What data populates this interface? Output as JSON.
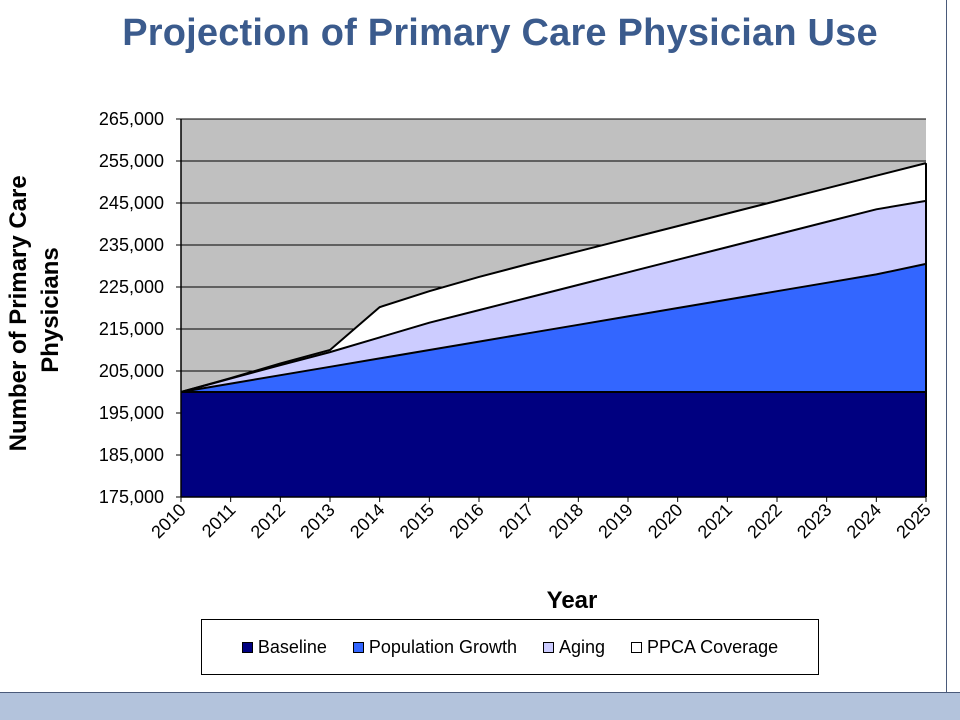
{
  "chart_data": {
    "type": "area",
    "stacked": true,
    "title": "Projection of Primary Care Physician Use",
    "xlabel": "Year",
    "ylabel": "Number of Primary Care Physicians",
    "ylim": [
      175000,
      265000
    ],
    "y_ticks": [
      "175,000",
      "185,000",
      "195,000",
      "205,000",
      "215,000",
      "225,000",
      "235,000",
      "245,000",
      "255,000",
      "265,000"
    ],
    "y_tick_values": [
      175000,
      185000,
      195000,
      205000,
      215000,
      225000,
      235000,
      245000,
      255000,
      265000
    ],
    "x": [
      "2010",
      "2011",
      "2012",
      "2013",
      "2014",
      "2015",
      "2016",
      "2017",
      "2018",
      "2019",
      "2020",
      "2021",
      "2022",
      "2023",
      "2024",
      "2025"
    ],
    "plot_background": "#c0c0c0",
    "grid": true,
    "legend_position": "bottom",
    "series": [
      {
        "name": "Baseline",
        "color": "#000080",
        "cumulative": [
          200000,
          200000,
          200000,
          200000,
          200000,
          200000,
          200000,
          200000,
          200000,
          200000,
          200000,
          200000,
          200000,
          200000,
          200000,
          200000
        ]
      },
      {
        "name": "Population Growth",
        "color": "#3366ff",
        "cumulative": [
          200000,
          202000,
          204000,
          206000,
          208000,
          210000,
          212000,
          214000,
          216000,
          218000,
          220000,
          222000,
          224000,
          226000,
          228000,
          230500
        ]
      },
      {
        "name": "Aging",
        "color": "#ccccff",
        "cumulative": [
          200000,
          203200,
          206400,
          209500,
          213000,
          216500,
          219500,
          222500,
          225500,
          228500,
          231500,
          234500,
          237500,
          240500,
          243500,
          245500
        ]
      },
      {
        "name": "PPCA Coverage",
        "color": "#ffffff",
        "cumulative": [
          200000,
          203300,
          206800,
          210000,
          220200,
          224000,
          227400,
          230500,
          233500,
          236500,
          239500,
          242500,
          245500,
          248500,
          251500,
          254500
        ]
      }
    ]
  }
}
